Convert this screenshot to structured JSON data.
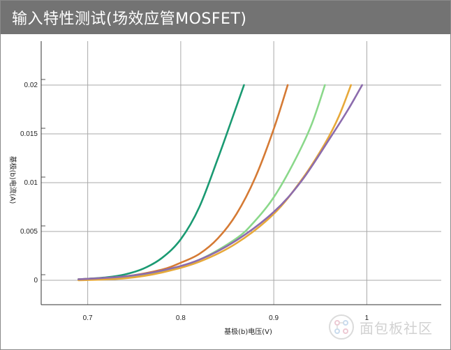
{
  "window": {
    "title": "输入特性测试(场效应管MOSFET)"
  },
  "chart_data": {
    "type": "line",
    "title": "",
    "xlabel": "基极(b)电压(V)",
    "ylabel": "基极(b)电流(A)",
    "xlim": [
      0.65,
      1.08
    ],
    "ylim": [
      -0.0025,
      0.0245
    ],
    "xticks": [
      0.7,
      0.8,
      0.9,
      1.0
    ],
    "xtick_labels": [
      "0.7",
      "0.8",
      "0.9",
      "1"
    ],
    "yticks": [
      0,
      0.005,
      0.01,
      0.015,
      0.02
    ],
    "ytick_labels": [
      "0",
      "0.005",
      "0.01",
      "0.015",
      "0.02"
    ],
    "grid": true,
    "legend": "none",
    "series": [
      {
        "color": "#1a9a72",
        "x": [
          0.69,
          0.72,
          0.74,
          0.76,
          0.78,
          0.8,
          0.82,
          0.84,
          0.855,
          0.868
        ],
        "y": [
          0.0001,
          0.0003,
          0.0006,
          0.0012,
          0.0023,
          0.0042,
          0.0075,
          0.0125,
          0.0165,
          0.02
        ]
      },
      {
        "color": "#d57a34",
        "x": [
          0.69,
          0.74,
          0.78,
          0.8,
          0.82,
          0.84,
          0.86,
          0.88,
          0.9,
          0.915
        ],
        "y": [
          0.0001,
          0.0004,
          0.0011,
          0.0018,
          0.0027,
          0.0043,
          0.0068,
          0.0105,
          0.0155,
          0.02
        ]
      },
      {
        "color": "#8ad88a",
        "x": [
          0.69,
          0.74,
          0.78,
          0.82,
          0.86,
          0.88,
          0.9,
          0.92,
          0.94,
          0.955
        ],
        "y": [
          0.0001,
          0.0003,
          0.0009,
          0.0021,
          0.0043,
          0.0061,
          0.0085,
          0.0118,
          0.0158,
          0.02
        ]
      },
      {
        "color": "#e7a93a",
        "x": [
          0.69,
          0.74,
          0.78,
          0.82,
          0.86,
          0.9,
          0.93,
          0.955,
          0.97,
          0.983
        ],
        "y": [
          0.0,
          0.0002,
          0.0008,
          0.0019,
          0.0038,
          0.0068,
          0.0103,
          0.014,
          0.0168,
          0.02
        ]
      },
      {
        "color": "#8c6cad",
        "x": [
          0.69,
          0.74,
          0.78,
          0.82,
          0.86,
          0.9,
          0.93,
          0.96,
          0.98,
          0.995
        ],
        "y": [
          0.0001,
          0.0004,
          0.001,
          0.0021,
          0.0041,
          0.007,
          0.0102,
          0.0145,
          0.0175,
          0.02
        ]
      }
    ]
  },
  "watermark": {
    "icon": "circuit-logo-icon",
    "text": "面包板社区"
  }
}
